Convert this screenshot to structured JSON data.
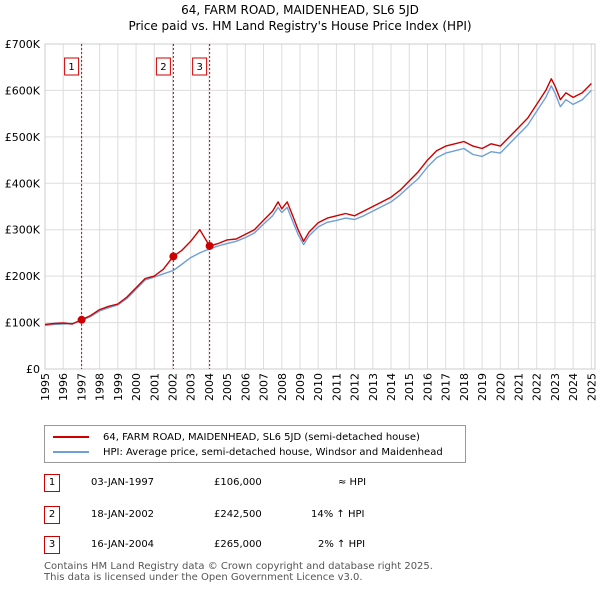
{
  "title_line1": "64, FARM ROAD, MAIDENHEAD, SL6 5JD",
  "title_line2": "Price paid vs. HM Land Registry's House Price Index (HPI)",
  "chart_data": {
    "type": "line",
    "title": "64, FARM ROAD, MAIDENHEAD, SL6 5JD",
    "subtitle": "Price paid vs. HM Land Registry's House Price Index (HPI)",
    "xlabel": "",
    "ylabel": "",
    "xlim": [
      1995,
      2025.2
    ],
    "ylim": [
      0,
      700000
    ],
    "x_ticks": [
      1995,
      1996,
      1997,
      1998,
      1999,
      2000,
      2001,
      2002,
      2003,
      2004,
      2005,
      2006,
      2007,
      2008,
      2009,
      2010,
      2011,
      2012,
      2013,
      2014,
      2015,
      2016,
      2017,
      2018,
      2019,
      2020,
      2021,
      2022,
      2023,
      2024,
      2025
    ],
    "y_ticks": [
      {
        "value": 0,
        "label": "£0"
      },
      {
        "value": 100000,
        "label": "£100K"
      },
      {
        "value": 200000,
        "label": "£200K"
      },
      {
        "value": 300000,
        "label": "£300K"
      },
      {
        "value": 400000,
        "label": "£400K"
      },
      {
        "value": 500000,
        "label": "£500K"
      },
      {
        "value": 600000,
        "label": "£600K"
      },
      {
        "value": 700000,
        "label": "£700K"
      }
    ],
    "grid": true,
    "colors": {
      "price": "#cc0000",
      "hpi": "#6f9fd8",
      "grid": "#dddddd",
      "vline": "#cc0000"
    },
    "series": [
      {
        "name": "64, FARM ROAD, MAIDENHEAD, SL6 5JD (semi-detached house)",
        "color": "#cc0000",
        "points": [
          [
            1995.0,
            96000
          ],
          [
            1995.5,
            98000
          ],
          [
            1996.0,
            99000
          ],
          [
            1996.5,
            97000
          ],
          [
            1997.0,
            106000
          ],
          [
            1997.5,
            115000
          ],
          [
            1998.0,
            128000
          ],
          [
            1998.5,
            135000
          ],
          [
            1999.0,
            140000
          ],
          [
            1999.5,
            155000
          ],
          [
            2000.0,
            175000
          ],
          [
            2000.5,
            195000
          ],
          [
            2001.0,
            200000
          ],
          [
            2001.5,
            215000
          ],
          [
            2002.04,
            242500
          ],
          [
            2002.5,
            255000
          ],
          [
            2003.0,
            275000
          ],
          [
            2003.5,
            300000
          ],
          [
            2004.04,
            265000
          ],
          [
            2004.5,
            270000
          ],
          [
            2005.0,
            278000
          ],
          [
            2005.5,
            280000
          ],
          [
            2006.0,
            290000
          ],
          [
            2006.5,
            300000
          ],
          [
            2007.0,
            320000
          ],
          [
            2007.5,
            340000
          ],
          [
            2007.8,
            360000
          ],
          [
            2008.0,
            345000
          ],
          [
            2008.3,
            360000
          ],
          [
            2008.6,
            330000
          ],
          [
            2008.9,
            300000
          ],
          [
            2009.2,
            275000
          ],
          [
            2009.5,
            295000
          ],
          [
            2010.0,
            315000
          ],
          [
            2010.5,
            325000
          ],
          [
            2011.0,
            330000
          ],
          [
            2011.5,
            335000
          ],
          [
            2012.0,
            330000
          ],
          [
            2012.5,
            340000
          ],
          [
            2013.0,
            350000
          ],
          [
            2013.5,
            360000
          ],
          [
            2014.0,
            370000
          ],
          [
            2014.5,
            385000
          ],
          [
            2015.0,
            405000
          ],
          [
            2015.5,
            425000
          ],
          [
            2016.0,
            450000
          ],
          [
            2016.5,
            470000
          ],
          [
            2017.0,
            480000
          ],
          [
            2017.5,
            485000
          ],
          [
            2018.0,
            490000
          ],
          [
            2018.5,
            480000
          ],
          [
            2019.0,
            475000
          ],
          [
            2019.5,
            485000
          ],
          [
            2020.0,
            480000
          ],
          [
            2020.5,
            500000
          ],
          [
            2021.0,
            520000
          ],
          [
            2021.5,
            540000
          ],
          [
            2022.0,
            570000
          ],
          [
            2022.5,
            600000
          ],
          [
            2022.8,
            625000
          ],
          [
            2023.0,
            610000
          ],
          [
            2023.3,
            580000
          ],
          [
            2023.6,
            595000
          ],
          [
            2024.0,
            585000
          ],
          [
            2024.5,
            595000
          ],
          [
            2025.0,
            615000
          ]
        ]
      },
      {
        "name": "HPI: Average price, semi-detached house, Windsor and Maidenhead",
        "color": "#6f9fd8",
        "points": [
          [
            1995.0,
            94000
          ],
          [
            1995.5,
            96000
          ],
          [
            1996.0,
            97000
          ],
          [
            1996.5,
            98000
          ],
          [
            1997.0,
            104000
          ],
          [
            1997.5,
            113000
          ],
          [
            1998.0,
            125000
          ],
          [
            1998.5,
            132000
          ],
          [
            1999.0,
            138000
          ],
          [
            1999.5,
            152000
          ],
          [
            2000.0,
            172000
          ],
          [
            2000.5,
            192000
          ],
          [
            2001.0,
            198000
          ],
          [
            2001.5,
            205000
          ],
          [
            2002.04,
            212000
          ],
          [
            2002.5,
            225000
          ],
          [
            2003.0,
            240000
          ],
          [
            2003.5,
            250000
          ],
          [
            2004.04,
            259000
          ],
          [
            2004.5,
            265000
          ],
          [
            2005.0,
            270000
          ],
          [
            2005.5,
            275000
          ],
          [
            2006.0,
            283000
          ],
          [
            2006.5,
            293000
          ],
          [
            2007.0,
            312000
          ],
          [
            2007.5,
            330000
          ],
          [
            2007.8,
            348000
          ],
          [
            2008.0,
            337000
          ],
          [
            2008.3,
            348000
          ],
          [
            2008.6,
            318000
          ],
          [
            2008.9,
            290000
          ],
          [
            2009.2,
            268000
          ],
          [
            2009.5,
            287000
          ],
          [
            2010.0,
            306000
          ],
          [
            2010.5,
            316000
          ],
          [
            2011.0,
            320000
          ],
          [
            2011.5,
            325000
          ],
          [
            2012.0,
            322000
          ],
          [
            2012.5,
            330000
          ],
          [
            2013.0,
            340000
          ],
          [
            2013.5,
            350000
          ],
          [
            2014.0,
            360000
          ],
          [
            2014.5,
            375000
          ],
          [
            2015.0,
            393000
          ],
          [
            2015.5,
            410000
          ],
          [
            2016.0,
            435000
          ],
          [
            2016.5,
            455000
          ],
          [
            2017.0,
            465000
          ],
          [
            2017.5,
            470000
          ],
          [
            2018.0,
            475000
          ],
          [
            2018.5,
            462000
          ],
          [
            2019.0,
            458000
          ],
          [
            2019.5,
            468000
          ],
          [
            2020.0,
            465000
          ],
          [
            2020.5,
            485000
          ],
          [
            2021.0,
            505000
          ],
          [
            2021.5,
            525000
          ],
          [
            2022.0,
            555000
          ],
          [
            2022.5,
            585000
          ],
          [
            2022.8,
            610000
          ],
          [
            2023.0,
            595000
          ],
          [
            2023.3,
            565000
          ],
          [
            2023.6,
            580000
          ],
          [
            2024.0,
            570000
          ],
          [
            2024.5,
            580000
          ],
          [
            2025.0,
            600000
          ]
        ]
      }
    ],
    "sales": [
      {
        "id": "1",
        "x": 1997.01,
        "price": 106000
      },
      {
        "id": "2",
        "x": 2002.05,
        "price": 242500
      },
      {
        "id": "3",
        "x": 2004.04,
        "price": 265000
      }
    ]
  },
  "legend": {
    "price_label": "64, FARM ROAD, MAIDENHEAD, SL6 5JD (semi-detached house)",
    "hpi_label": "HPI: Average price, semi-detached house, Windsor and Maidenhead"
  },
  "transactions": [
    {
      "num": "1",
      "date": "03-JAN-1997",
      "price": "£106,000",
      "hpi": "≈ HPI"
    },
    {
      "num": "2",
      "date": "18-JAN-2002",
      "price": "£242,500",
      "hpi": "14% ↑ HPI"
    },
    {
      "num": "3",
      "date": "16-JAN-2004",
      "price": "£265,000",
      "hpi": "2% ↑ HPI"
    }
  ],
  "footer": {
    "line1": "Contains HM Land Registry data © Crown copyright and database right 2025.",
    "line2": "This data is licensed under the Open Government Licence v3.0."
  }
}
